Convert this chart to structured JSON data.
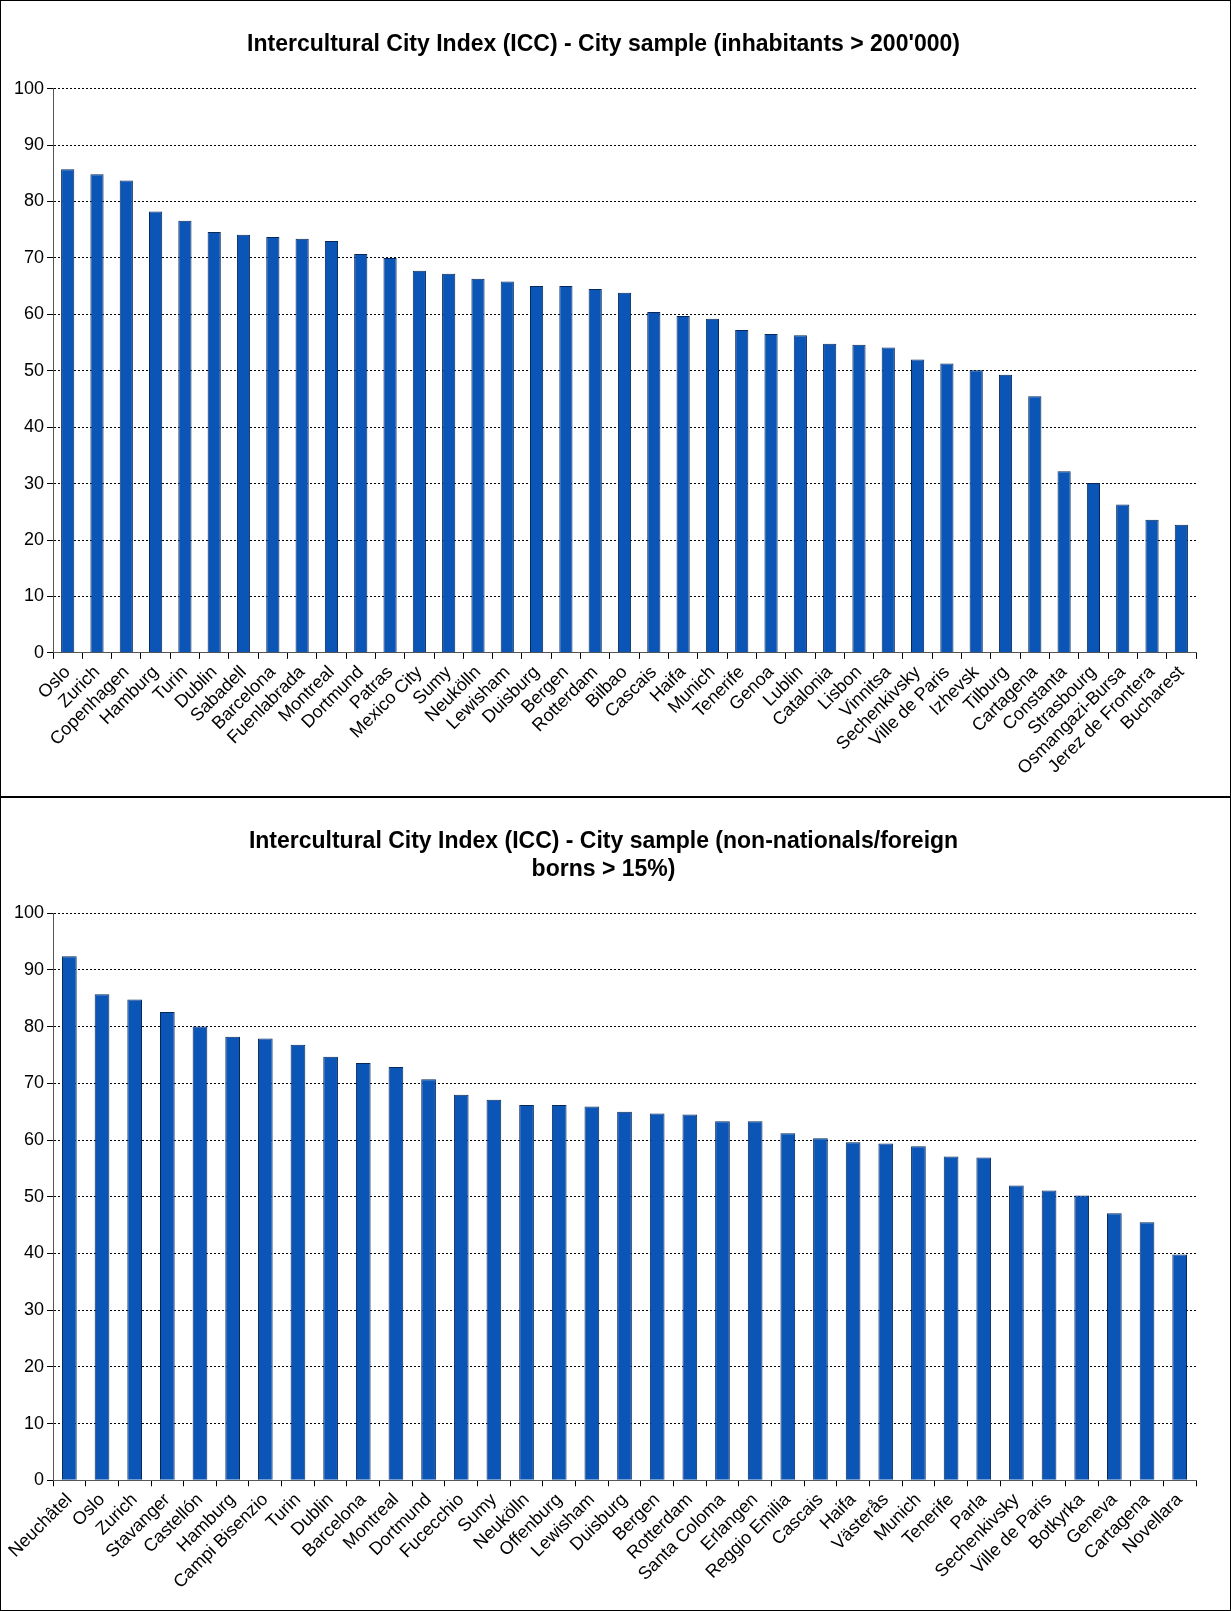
{
  "chart_data": [
    {
      "type": "bar",
      "title": "Intercultural City Index (ICC) - City sample (inhabitants > 200'000)",
      "categories": [
        "Oslo",
        "Zurich",
        "Copenhagen",
        "Hamburg",
        "Turin",
        "Dublin",
        "Sabadell",
        "Barcelona",
        "Fuenlabrada",
        "Montreal",
        "Dortmund",
        "Patras",
        "Mexico City",
        "Sumy",
        "Neukölln",
        "Lewisham",
        "Duisburg",
        "Bergen",
        "Rotterdam",
        "Bilbao",
        "Cascais",
        "Haifa",
        "Munich",
        "Tenerife",
        "Genoa",
        "Lublin",
        "Catalonia",
        "Lisbon",
        "Vinnitsa",
        "Sechenkivsky",
        "Ville de Paris",
        "Izhevsk",
        "Tilburg",
        "Cartagena",
        "Constanta",
        "Strasbourg",
        "Osmangazi-Bursa",
        "Jerez de Frontera",
        "Bucharest"
      ],
      "values": [
        85.7,
        84.8,
        83.7,
        78.2,
        76.6,
        74.6,
        74.1,
        73.7,
        73.4,
        73.0,
        70.7,
        70.0,
        67.7,
        67.2,
        66.3,
        65.8,
        65.0,
        65.0,
        64.5,
        63.8,
        60.4,
        59.7,
        59.2,
        57.2,
        56.5,
        56.3,
        54.8,
        54.6,
        54.1,
        52.0,
        51.3,
        50.1,
        49.3,
        45.5,
        32.2,
        30.1,
        26.3,
        23.6,
        22.7
      ],
      "color": "#0a55b5",
      "ylim": [
        0,
        100
      ],
      "yticks": [
        0,
        10,
        20,
        30,
        40,
        50,
        60,
        70,
        80,
        90,
        100
      ],
      "grid": "y",
      "legend": false
    },
    {
      "type": "bar",
      "title": "Intercultural City Index (ICC) - City sample (non-nationals/foreign borns > 15%)",
      "categories": [
        "Neuchâtel",
        "Oslo",
        "Zurich",
        "Stavanger",
        "Castellón",
        "Hamburg",
        "Campi Bisenzio",
        "Turin",
        "Dublin",
        "Barcelona",
        "Montreal",
        "Dortmund",
        "Fucecchio",
        "Sumy",
        "Neukölln",
        "Offenburg",
        "Lewisham",
        "Duisburg",
        "Bergen",
        "Rotterdam",
        "Santa Coloma",
        "Erlangen",
        "Reggio Emilia",
        "Cascais",
        "Haifa",
        "Västerås",
        "Munich",
        "Tenerife",
        "Parla",
        "Sechenkivsky",
        "Ville de Paris",
        "Botkyrka",
        "Geneva",
        "Cartagena",
        "Novellara"
      ],
      "values": [
        92.4,
        85.7,
        84.8,
        82.6,
        80.0,
        78.2,
        77.9,
        76.8,
        74.7,
        73.6,
        72.9,
        70.7,
        68.0,
        67.1,
        66.2,
        66.2,
        65.9,
        65.0,
        64.7,
        64.5,
        63.3,
        63.3,
        61.2,
        60.3,
        59.6,
        59.4,
        58.9,
        57.1,
        56.9,
        52.0,
        51.1,
        50.2,
        47.1,
        45.5,
        39.8
      ],
      "color": "#0a55b5",
      "ylim": [
        0,
        100
      ],
      "yticks": [
        0,
        10,
        20,
        30,
        40,
        50,
        60,
        70,
        80,
        90,
        100
      ],
      "grid": "y",
      "legend": false
    }
  ]
}
